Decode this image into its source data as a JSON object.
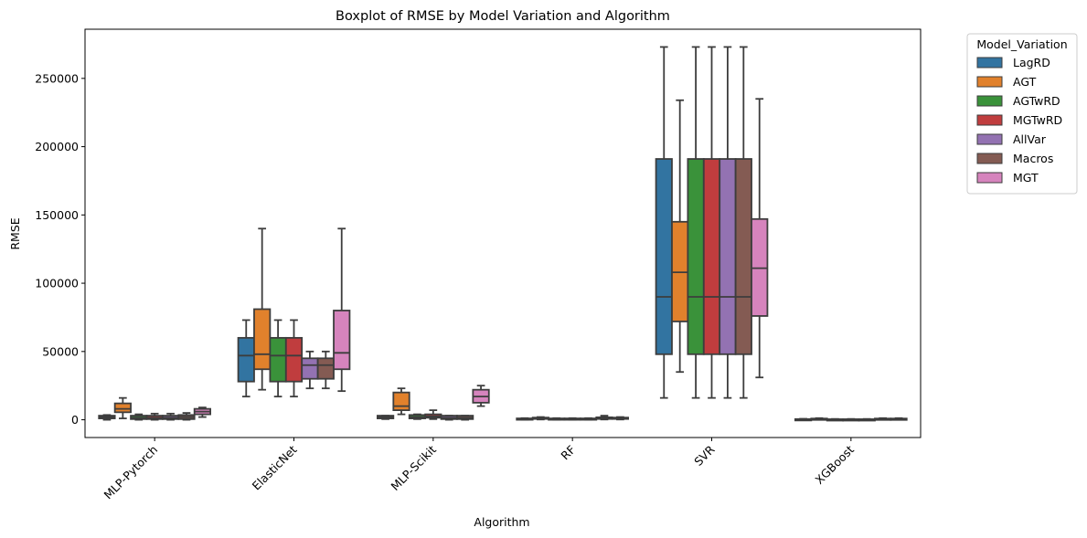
{
  "chart_data": {
    "type": "boxplot",
    "title": "Boxplot of RMSE by Model Variation and Algorithm",
    "xlabel": "Algorithm",
    "ylabel": "RMSE",
    "ylim": [
      -13000,
      286000
    ],
    "yticks": [
      0,
      50000,
      100000,
      150000,
      200000,
      250000
    ],
    "grid": false,
    "legend": {
      "title": "Model_Variation",
      "placement": "outside-upper-right"
    },
    "categories": [
      "MLP-Pytorch",
      "ElasticNet",
      "MLP-Scikit",
      "RF",
      "SVR",
      "XGBoost"
    ],
    "series": [
      {
        "name": "LagRD",
        "color": "#3274a1",
        "boxes": [
          {
            "min": 0,
            "q1": 1000,
            "median": 2000,
            "q3": 3000,
            "max": 3500
          },
          {
            "min": 17000,
            "q1": 28000,
            "median": 47000,
            "q3": 60000,
            "max": 73000
          },
          {
            "min": 500,
            "q1": 1000,
            "median": 2000,
            "q3": 3000,
            "max": 3000
          },
          {
            "min": 0,
            "q1": 300,
            "median": 600,
            "q3": 1000,
            "max": 1200
          },
          {
            "min": 16000,
            "q1": 48000,
            "median": 90000,
            "q3": 191000,
            "max": 273000
          },
          {
            "min": 100,
            "q1": 200,
            "median": 300,
            "q3": 500,
            "max": 700
          }
        ]
      },
      {
        "name": "AGT",
        "color": "#e1812c",
        "boxes": [
          {
            "min": 1000,
            "q1": 5500,
            "median": 8000,
            "q3": 12000,
            "max": 16000
          },
          {
            "min": 22000,
            "q1": 37000,
            "median": 48000,
            "q3": 81000,
            "max": 140000
          },
          {
            "min": 4000,
            "q1": 7000,
            "median": 10000,
            "q3": 20000,
            "max": 23000
          },
          {
            "min": 200,
            "q1": 600,
            "median": 1000,
            "q3": 1600,
            "max": 2000
          },
          {
            "min": 35000,
            "q1": 72000,
            "median": 108000,
            "q3": 145000,
            "max": 234000
          },
          {
            "min": 100,
            "q1": 300,
            "median": 500,
            "q3": 900,
            "max": 1200
          }
        ]
      },
      {
        "name": "AGTwRD",
        "color": "#3a923a",
        "boxes": [
          {
            "min": 0,
            "q1": 500,
            "median": 1500,
            "q3": 3000,
            "max": 4000
          },
          {
            "min": 17000,
            "q1": 28000,
            "median": 47000,
            "q3": 60000,
            "max": 73000
          },
          {
            "min": 500,
            "q1": 1000,
            "median": 2000,
            "q3": 3500,
            "max": 4000
          },
          {
            "min": 0,
            "q1": 300,
            "median": 600,
            "q3": 1000,
            "max": 1200
          },
          {
            "min": 16000,
            "q1": 48000,
            "median": 90000,
            "q3": 191000,
            "max": 273000
          },
          {
            "min": 100,
            "q1": 200,
            "median": 300,
            "q3": 400,
            "max": 600
          }
        ]
      },
      {
        "name": "MGTwRD",
        "color": "#c03d3e",
        "boxes": [
          {
            "min": 0,
            "q1": 500,
            "median": 1500,
            "q3": 3000,
            "max": 4500
          },
          {
            "min": 17000,
            "q1": 28000,
            "median": 47000,
            "q3": 60000,
            "max": 73000
          },
          {
            "min": 500,
            "q1": 1500,
            "median": 2500,
            "q3": 4000,
            "max": 7000
          },
          {
            "min": 0,
            "q1": 300,
            "median": 600,
            "q3": 1000,
            "max": 1200
          },
          {
            "min": 16000,
            "q1": 48000,
            "median": 90000,
            "q3": 191000,
            "max": 273000
          },
          {
            "min": 100,
            "q1": 200,
            "median": 300,
            "q3": 400,
            "max": 600
          }
        ]
      },
      {
        "name": "AllVar",
        "color": "#9372b2",
        "boxes": [
          {
            "min": 0,
            "q1": 500,
            "median": 1500,
            "q3": 3000,
            "max": 4500
          },
          {
            "min": 23000,
            "q1": 30000,
            "median": 40000,
            "q3": 45000,
            "max": 50000
          },
          {
            "min": 0,
            "q1": 500,
            "median": 1500,
            "q3": 3000,
            "max": 3000
          },
          {
            "min": 0,
            "q1": 300,
            "median": 600,
            "q3": 1000,
            "max": 1200
          },
          {
            "min": 16000,
            "q1": 48000,
            "median": 90000,
            "q3": 191000,
            "max": 273000
          },
          {
            "min": 100,
            "q1": 200,
            "median": 300,
            "q3": 400,
            "max": 600
          }
        ]
      },
      {
        "name": "Macros",
        "color": "#845b53",
        "boxes": [
          {
            "min": 0,
            "q1": 500,
            "median": 2000,
            "q3": 3500,
            "max": 5000
          },
          {
            "min": 23000,
            "q1": 30000,
            "median": 40000,
            "q3": 45000,
            "max": 50000
          },
          {
            "min": 0,
            "q1": 500,
            "median": 1500,
            "q3": 3000,
            "max": 3000
          },
          {
            "min": 200,
            "q1": 600,
            "median": 1000,
            "q3": 1800,
            "max": 3000
          },
          {
            "min": 16000,
            "q1": 48000,
            "median": 90000,
            "q3": 191000,
            "max": 273000
          },
          {
            "min": 100,
            "q1": 300,
            "median": 500,
            "q3": 900,
            "max": 1200
          }
        ]
      },
      {
        "name": "MGT",
        "color": "#d684bd",
        "boxes": [
          {
            "min": 2000,
            "q1": 4000,
            "median": 6000,
            "q3": 8000,
            "max": 9000
          },
          {
            "min": 21000,
            "q1": 37000,
            "median": 49000,
            "q3": 80000,
            "max": 140000
          },
          {
            "min": 10000,
            "q1": 12500,
            "median": 17000,
            "q3": 22000,
            "max": 25000
          },
          {
            "min": 200,
            "q1": 600,
            "median": 1000,
            "q3": 1600,
            "max": 2000
          },
          {
            "min": 31000,
            "q1": 76000,
            "median": 111000,
            "q3": 147000,
            "max": 235000
          },
          {
            "min": 100,
            "q1": 300,
            "median": 500,
            "q3": 900,
            "max": 1200
          }
        ]
      }
    ]
  }
}
